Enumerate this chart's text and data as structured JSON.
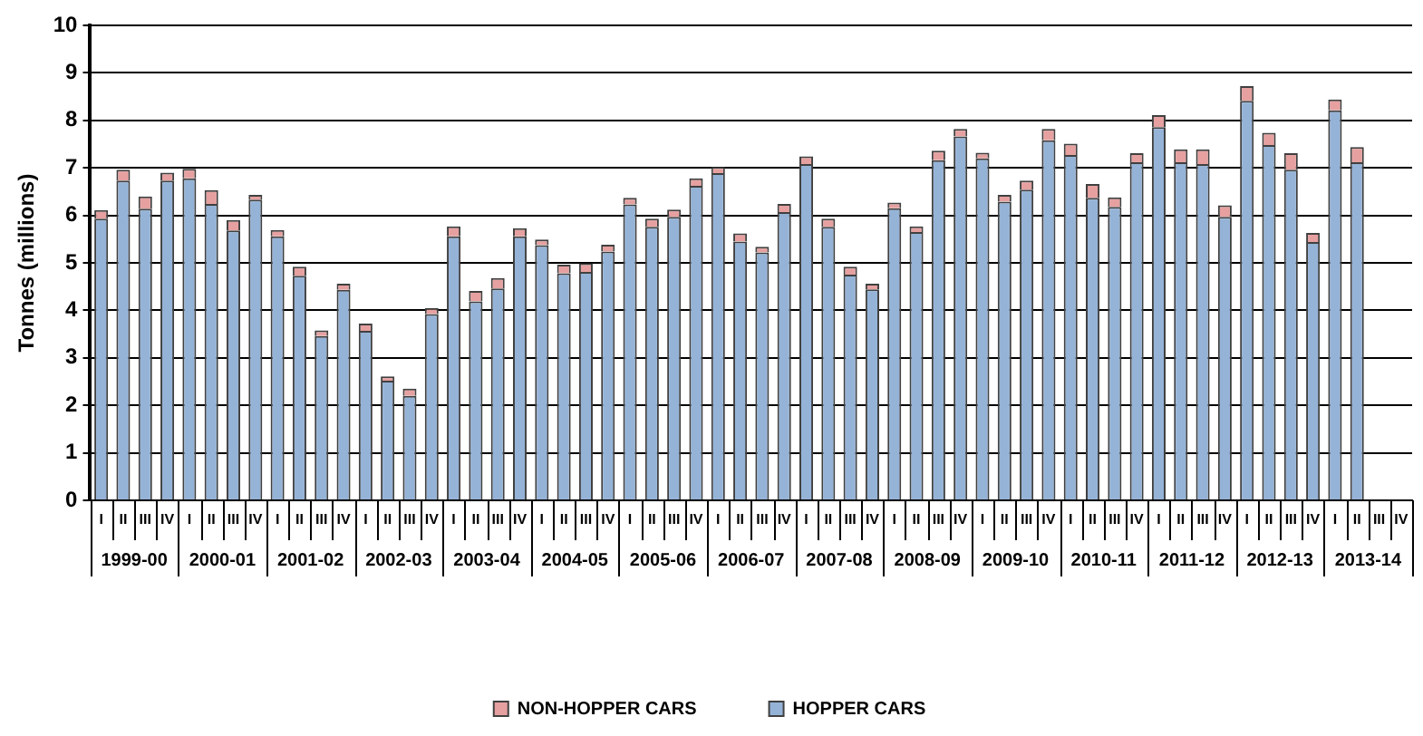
{
  "chart_data": {
    "type": "bar",
    "stacked": true,
    "ylabel": "Tonnes (millions)",
    "categories": [
      "I",
      "II",
      "III",
      "IV",
      "I",
      "II",
      "III",
      "IV",
      "I",
      "II",
      "III",
      "IV",
      "I",
      "II",
      "III",
      "IV",
      "I",
      "II",
      "III",
      "IV",
      "I",
      "II",
      "III",
      "IV",
      "I",
      "II",
      "III",
      "IV",
      "I",
      "II",
      "III",
      "IV",
      "I",
      "II",
      "III",
      "IV",
      "I",
      "II",
      "III",
      "IV",
      "I",
      "II",
      "III",
      "IV",
      "I",
      "II",
      "III",
      "IV",
      "I",
      "II",
      "III",
      "IV",
      "I",
      "II",
      "III",
      "IV",
      "I",
      "II",
      "III",
      "IV"
    ],
    "series": [
      {
        "name": "HOPPER CARS",
        "color": "#95b3d7",
        "values": [
          5.93,
          6.73,
          6.14,
          6.73,
          6.78,
          6.24,
          5.68,
          6.33,
          5.56,
          4.73,
          3.46,
          4.43,
          3.57,
          2.52,
          2.2,
          3.92,
          5.56,
          4.19,
          4.46,
          5.56,
          5.37,
          4.78,
          4.81,
          5.24,
          6.23,
          5.76,
          5.97,
          6.62,
          6.89,
          5.45,
          5.22,
          6.07,
          7.08,
          5.76,
          4.75,
          4.44,
          6.15,
          5.65,
          7.16,
          7.66,
          7.2,
          6.29,
          6.54,
          7.58,
          7.27,
          6.37,
          6.18,
          7.12,
          7.86,
          7.12,
          7.08,
          5.97,
          8.41,
          7.48,
          6.96,
          5.44,
          8.21,
          7.12,
          null,
          null
        ]
      },
      {
        "name": "NON-HOPPER CARS",
        "color": "#e6a0a0",
        "values": [
          0.18,
          0.23,
          0.26,
          0.17,
          0.2,
          0.29,
          0.22,
          0.1,
          0.13,
          0.19,
          0.12,
          0.13,
          0.15,
          0.09,
          0.15,
          0.13,
          0.21,
          0.22,
          0.22,
          0.17,
          0.12,
          0.18,
          0.18,
          0.14,
          0.14,
          0.17,
          0.15,
          0.16,
          0.13,
          0.17,
          0.12,
          0.17,
          0.16,
          0.17,
          0.17,
          0.12,
          0.12,
          0.12,
          0.2,
          0.16,
          0.12,
          0.14,
          0.19,
          0.24,
          0.24,
          0.29,
          0.2,
          0.19,
          0.25,
          0.27,
          0.31,
          0.24,
          0.31,
          0.26,
          0.35,
          0.19,
          0.23,
          0.32,
          null,
          null
        ]
      }
    ],
    "annotations": [
      "1999-00",
      "2000-01",
      "2001-02",
      "2002-03",
      "2003-04",
      "2004-05",
      "2005-06",
      "2006-07",
      "2007-08",
      "2008-09",
      "2009-10",
      "2010-11",
      "2011-12",
      "2012-13",
      "2013-14"
    ],
    "ylim": [
      0,
      10
    ],
    "yticks": [
      0,
      1,
      2,
      3,
      4,
      5,
      6,
      7,
      8,
      9,
      10
    ],
    "grid": "y",
    "legend": "bottom"
  }
}
